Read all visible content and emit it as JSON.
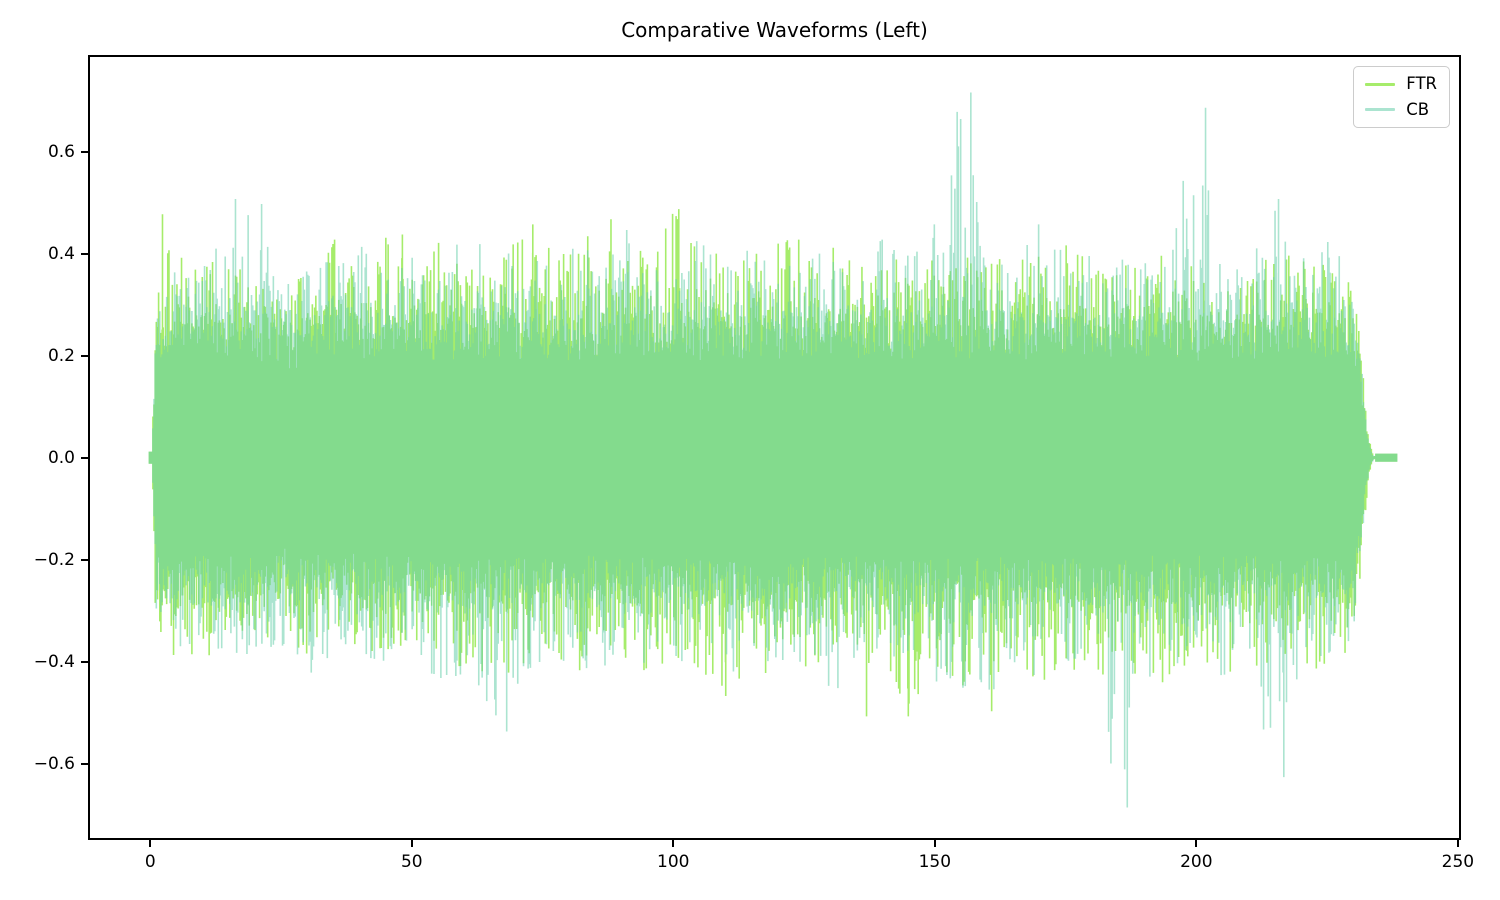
{
  "chart_data": {
    "type": "line",
    "title": "Comparative Waveforms (Left)",
    "xlabel": "",
    "ylabel": "",
    "grid": false,
    "xlim": [
      -11.9,
      250.6
    ],
    "ylim": [
      -0.75,
      0.79
    ],
    "x_ticks": [
      0,
      50,
      100,
      150,
      200,
      250
    ],
    "x_tick_labels": [
      "0",
      "50",
      "100",
      "150",
      "200",
      "250"
    ],
    "y_ticks": [
      0.6,
      0.4,
      0.2,
      0.0,
      -0.2,
      -0.4,
      -0.6
    ],
    "y_tick_labels": [
      "0.6",
      "0.4",
      "0.2",
      "0.0",
      "−0.2",
      "−0.4",
      "−0.6"
    ],
    "legend": {
      "position": "upper right",
      "entries": [
        {
          "label": "FTR",
          "color": "#a6ec6b",
          "alpha": 1
        },
        {
          "label": "CB",
          "color": "#66cdaa",
          "alpha": 0.55
        }
      ]
    },
    "x_start": 0,
    "x_end": 238.7,
    "start_ramp": 0.8,
    "tail": {
      "taper_start": 231.5,
      "flat_start": 234.5,
      "flat_amp": 0.008,
      "x_end": 238.7
    },
    "env_step": 5,
    "series": [
      {
        "name": "FTR",
        "color": "#a6ec6b",
        "alpha": 1,
        "env_max": [
          0.48,
          0.4,
          0.42,
          0.38,
          0.37,
          0.35,
          0.36,
          0.43,
          0.38,
          0.44,
          0.4,
          0.43,
          0.38,
          0.4,
          0.46,
          0.42,
          0.4,
          0.47,
          0.44,
          0.4,
          0.49,
          0.42,
          0.4,
          0.41,
          0.43,
          0.43,
          0.42,
          0.38,
          0.4,
          0.42,
          0.41,
          0.4,
          0.38,
          0.42,
          0.4,
          0.44,
          0.4,
          0.38,
          0.42,
          0.4,
          0.38,
          0.36,
          0.38,
          0.4,
          0.4,
          0.38,
          0.37,
          0.12,
          0.01
        ],
        "env_min": [
          -0.44,
          -0.38,
          -0.4,
          -0.36,
          -0.38,
          -0.35,
          -0.4,
          -0.36,
          -0.38,
          -0.4,
          -0.36,
          -0.38,
          -0.42,
          -0.44,
          -0.42,
          -0.38,
          -0.44,
          -0.4,
          -0.42,
          -0.44,
          -0.4,
          -0.42,
          -0.47,
          -0.42,
          -0.44,
          -0.42,
          -0.4,
          -0.42,
          -0.4,
          -0.5,
          -0.44,
          -0.46,
          -0.5,
          -0.44,
          -0.46,
          -0.42,
          -0.44,
          -0.42,
          -0.46,
          -0.44,
          -0.4,
          -0.42,
          -0.44,
          -0.4,
          -0.42,
          -0.44,
          -0.38,
          -0.12,
          -0.01
        ],
        "spikes": [
          [
            2,
            0.48
          ],
          [
            35,
            0.43
          ],
          [
            48,
            0.44
          ],
          [
            73,
            0.46
          ],
          [
            88,
            0.47
          ],
          [
            101,
            0.49
          ],
          [
            110,
            -0.47
          ],
          [
            124,
            0.43
          ],
          [
            137,
            -0.51
          ],
          [
            145,
            -0.51
          ],
          [
            161,
            -0.5
          ]
        ]
      },
      {
        "name": "CB",
        "color": "#66cdaa",
        "alpha": 0.55,
        "env_max": [
          0.35,
          0.41,
          0.38,
          0.51,
          0.5,
          0.36,
          0.38,
          0.4,
          0.42,
          0.38,
          0.4,
          0.38,
          0.45,
          0.4,
          0.42,
          0.4,
          0.46,
          0.42,
          0.47,
          0.42,
          0.4,
          0.44,
          0.4,
          0.42,
          0.4,
          0.38,
          0.42,
          0.4,
          0.43,
          0.4,
          0.46,
          0.72,
          0.42,
          0.4,
          0.46,
          0.4,
          0.42,
          0.4,
          0.38,
          0.42,
          0.69,
          0.4,
          0.38,
          0.51,
          0.4,
          0.43,
          0.38,
          0.1,
          0.01
        ],
        "env_min": [
          -0.35,
          -0.4,
          -0.42,
          -0.38,
          -0.4,
          -0.38,
          -0.44,
          -0.4,
          -0.38,
          -0.42,
          -0.4,
          -0.44,
          -0.43,
          -0.54,
          -0.46,
          -0.4,
          -0.42,
          -0.44,
          -0.4,
          -0.42,
          -0.44,
          -0.4,
          -0.42,
          -0.44,
          -0.4,
          -0.42,
          -0.46,
          -0.46,
          -0.4,
          -0.42,
          -0.44,
          -0.46,
          -0.48,
          -0.42,
          -0.44,
          -0.4,
          -0.42,
          -0.69,
          -0.44,
          -0.42,
          -0.4,
          -0.44,
          -0.4,
          -0.63,
          -0.42,
          -0.4,
          -0.36,
          -0.1,
          -0.01
        ],
        "spikes": [
          [
            16,
            0.51
          ],
          [
            21,
            0.5
          ],
          [
            68,
            -0.54
          ],
          [
            140,
            0.43
          ],
          [
            150,
            0.46
          ],
          [
            157,
            0.72
          ],
          [
            170,
            0.46
          ],
          [
            187,
            -0.69
          ],
          [
            202,
            0.69
          ],
          [
            216,
            0.51
          ],
          [
            217,
            -0.63
          ]
        ]
      }
    ],
    "colors": {
      "background": "#ffffff",
      "spine": "#000000",
      "tick": "#000000",
      "legend_border": "#cccccc"
    }
  }
}
